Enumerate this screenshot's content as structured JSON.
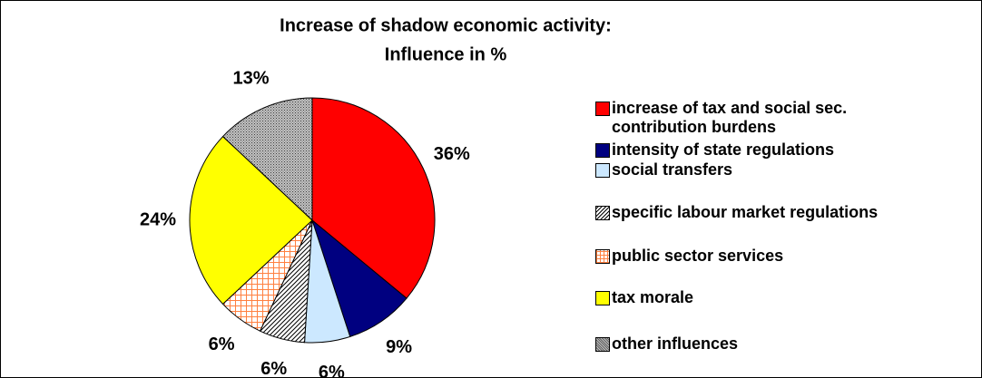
{
  "chart_data": {
    "type": "pie",
    "title": [
      "Increase of shadow economic activity:",
      "Influence in %"
    ],
    "categories": [
      "increase of tax and social sec. contribution burdens",
      "intensity of state regulations",
      "social transfers",
      "specific labour market regulations",
      "public sector services",
      "tax morale",
      "other influences"
    ],
    "values": [
      36,
      9,
      6,
      6,
      6,
      24,
      13
    ],
    "value_labels": [
      "36%",
      "9%",
      "6%",
      "6%",
      "6%",
      "24%",
      "13%"
    ],
    "colors": [
      "#ff0000",
      "#000080",
      "#cce8ff",
      "#ffffff",
      "#ffffff",
      "#ffff00",
      "#a0a0a0"
    ],
    "patterns": [
      null,
      null,
      null,
      "diagonal",
      "grid",
      null,
      "dots"
    ],
    "legend": "right"
  }
}
